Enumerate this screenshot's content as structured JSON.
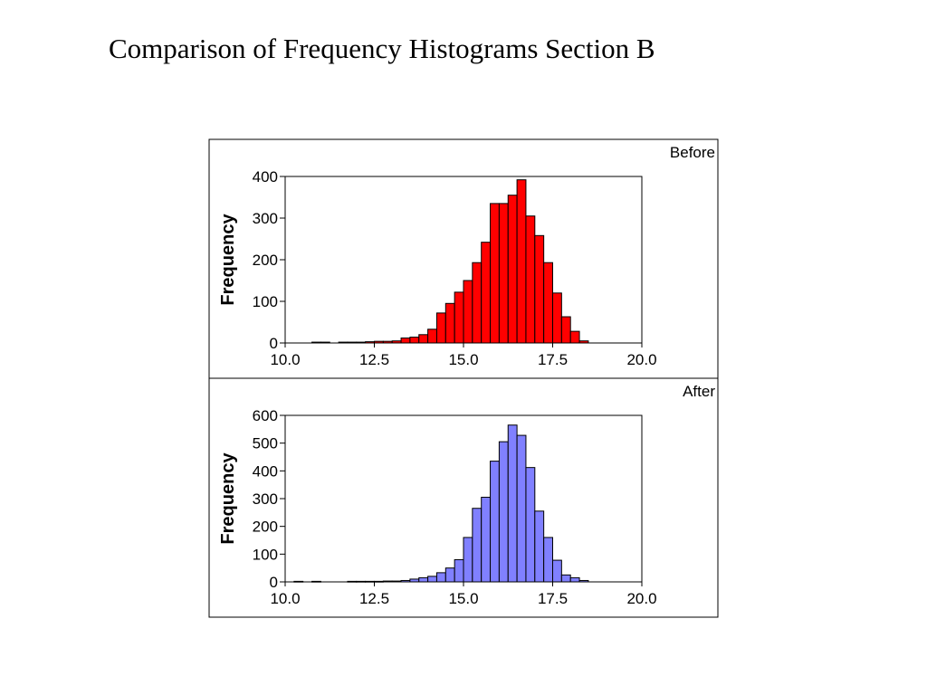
{
  "page": {
    "title": "Comparison of Frequency Histograms Section B"
  },
  "chart_data": [
    {
      "type": "bar",
      "title": "Before",
      "xlabel": "",
      "ylabel": "Frequency",
      "xlim": [
        10.0,
        20.0
      ],
      "ylim": [
        0,
        400
      ],
      "x_ticks": [
        "10.0",
        "12.5",
        "15.0",
        "17.5",
        "20.0"
      ],
      "y_ticks": [
        "0",
        "100",
        "200",
        "300",
        "400"
      ],
      "bin_width": 0.25,
      "color": "#ff0000",
      "grid": false,
      "bins": [
        {
          "x": 10.75,
          "value": 2
        },
        {
          "x": 11.0,
          "value": 2
        },
        {
          "x": 11.5,
          "value": 2
        },
        {
          "x": 11.75,
          "value": 2
        },
        {
          "x": 12.0,
          "value": 2
        },
        {
          "x": 12.25,
          "value": 3
        },
        {
          "x": 12.5,
          "value": 4
        },
        {
          "x": 12.75,
          "value": 4
        },
        {
          "x": 13.0,
          "value": 5
        },
        {
          "x": 13.25,
          "value": 12
        },
        {
          "x": 13.5,
          "value": 14
        },
        {
          "x": 13.75,
          "value": 20
        },
        {
          "x": 14.0,
          "value": 33
        },
        {
          "x": 14.25,
          "value": 72
        },
        {
          "x": 14.5,
          "value": 95
        },
        {
          "x": 14.75,
          "value": 122
        },
        {
          "x": 15.0,
          "value": 150
        },
        {
          "x": 15.25,
          "value": 193
        },
        {
          "x": 15.5,
          "value": 242
        },
        {
          "x": 15.75,
          "value": 335
        },
        {
          "x": 16.0,
          "value": 335
        },
        {
          "x": 16.25,
          "value": 355
        },
        {
          "x": 16.5,
          "value": 392
        },
        {
          "x": 16.75,
          "value": 305
        },
        {
          "x": 17.0,
          "value": 258
        },
        {
          "x": 17.25,
          "value": 193
        },
        {
          "x": 17.5,
          "value": 120
        },
        {
          "x": 17.75,
          "value": 63
        },
        {
          "x": 18.0,
          "value": 28
        },
        {
          "x": 18.25,
          "value": 5
        }
      ]
    },
    {
      "type": "bar",
      "title": "After",
      "xlabel": "",
      "ylabel": "Frequency",
      "xlim": [
        10.0,
        20.0
      ],
      "ylim": [
        0,
        600
      ],
      "x_ticks": [
        "10.0",
        "12.5",
        "15.0",
        "17.5",
        "20.0"
      ],
      "y_ticks": [
        "0",
        "100",
        "200",
        "300",
        "400",
        "500",
        "600"
      ],
      "bin_width": 0.25,
      "color": "#8080ff",
      "grid": false,
      "bins": [
        {
          "x": 10.25,
          "value": 2
        },
        {
          "x": 10.75,
          "value": 2
        },
        {
          "x": 11.75,
          "value": 2
        },
        {
          "x": 12.0,
          "value": 2
        },
        {
          "x": 12.25,
          "value": 2
        },
        {
          "x": 12.5,
          "value": 2
        },
        {
          "x": 12.75,
          "value": 3
        },
        {
          "x": 13.0,
          "value": 3
        },
        {
          "x": 13.25,
          "value": 5
        },
        {
          "x": 13.5,
          "value": 10
        },
        {
          "x": 13.75,
          "value": 15
        },
        {
          "x": 14.0,
          "value": 20
        },
        {
          "x": 14.25,
          "value": 33
        },
        {
          "x": 14.5,
          "value": 50
        },
        {
          "x": 14.75,
          "value": 80
        },
        {
          "x": 15.0,
          "value": 160
        },
        {
          "x": 15.25,
          "value": 265
        },
        {
          "x": 15.5,
          "value": 305
        },
        {
          "x": 15.75,
          "value": 435
        },
        {
          "x": 16.0,
          "value": 505
        },
        {
          "x": 16.25,
          "value": 565
        },
        {
          "x": 16.5,
          "value": 528
        },
        {
          "x": 16.75,
          "value": 412
        },
        {
          "x": 17.0,
          "value": 255
        },
        {
          "x": 17.25,
          "value": 160
        },
        {
          "x": 17.5,
          "value": 78
        },
        {
          "x": 17.75,
          "value": 25
        },
        {
          "x": 18.0,
          "value": 15
        },
        {
          "x": 18.25,
          "value": 5
        }
      ]
    }
  ]
}
